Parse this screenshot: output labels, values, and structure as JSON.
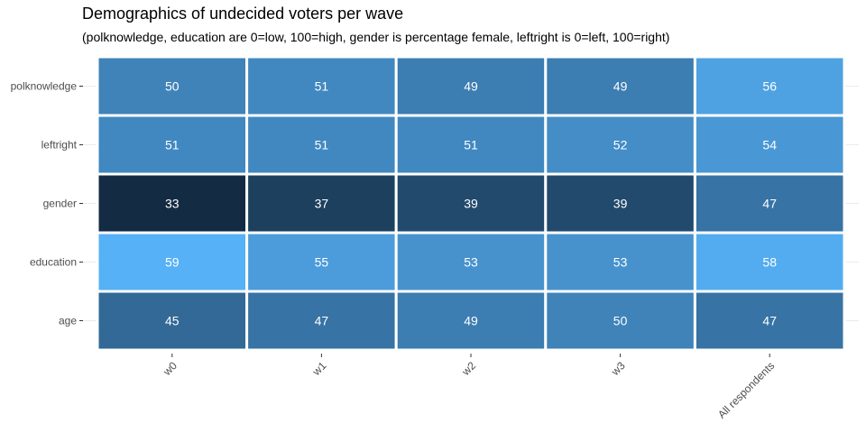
{
  "chart_data": {
    "type": "heatmap",
    "title": "Demographics of undecided voters per wave",
    "subtitle": "(polknowledge, education are 0=low, 100=high, gender is percentage female, leftright is 0=left, 100=right)",
    "x_categories": [
      "w0",
      "w1",
      "w2",
      "w3",
      "All respondents"
    ],
    "y_categories": [
      "polknowledge",
      "leftright",
      "gender",
      "education",
      "age"
    ],
    "values": [
      [
        50,
        51,
        49,
        49,
        56
      ],
      [
        51,
        51,
        51,
        52,
        54
      ],
      [
        33,
        37,
        39,
        39,
        47
      ],
      [
        59,
        55,
        53,
        53,
        58
      ],
      [
        45,
        47,
        49,
        50,
        47
      ]
    ],
    "color_low": "#132b43",
    "color_high": "#56b1f7",
    "cell_border_color": "#ffffff",
    "label_color": "#ffffff",
    "grid": true,
    "xlabel": "",
    "ylabel": ""
  }
}
